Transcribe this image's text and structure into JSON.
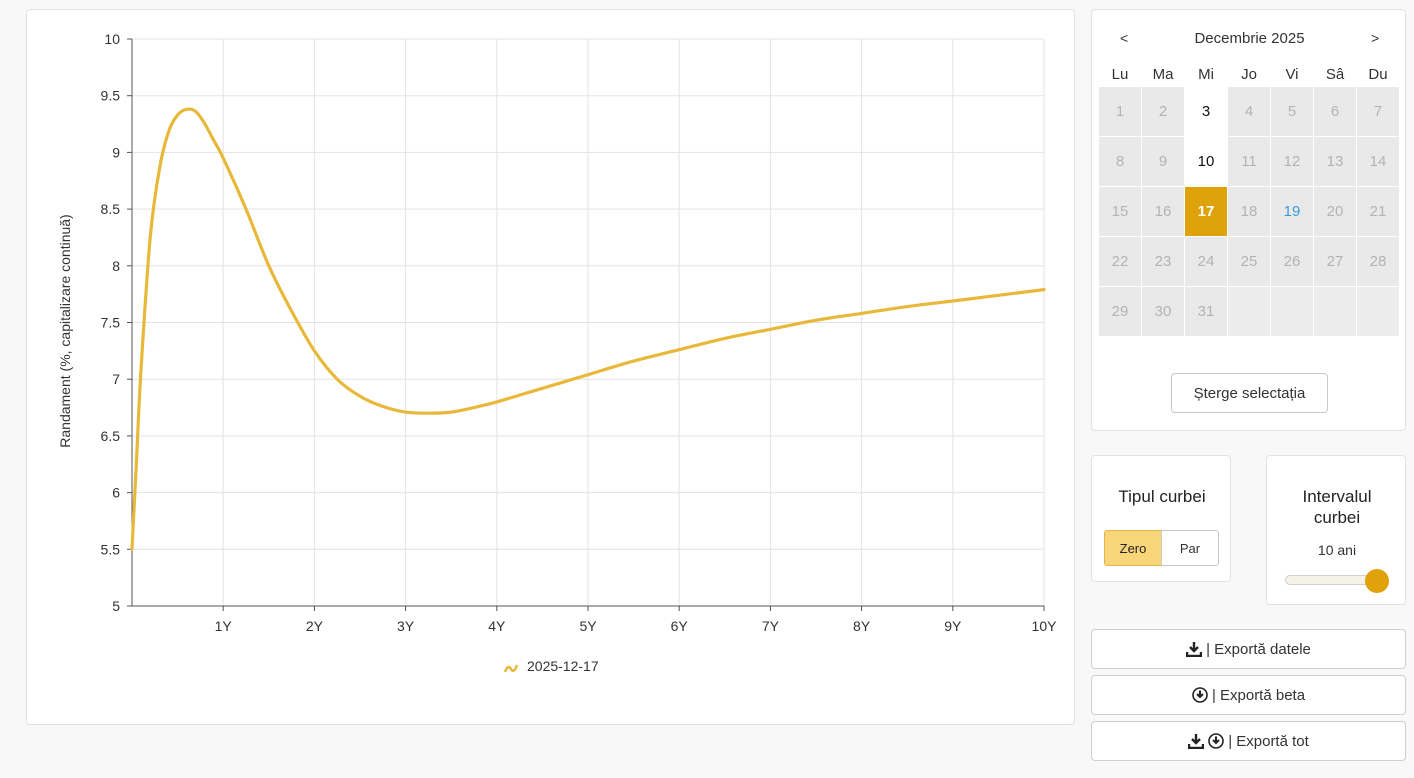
{
  "chart_data": {
    "type": "line",
    "title": "",
    "xlabel": "",
    "ylabel": "Randament (%, capitalizare continuă)",
    "xlim": [
      0,
      10
    ],
    "ylim": [
      5,
      10
    ],
    "x_ticks": [
      "1Y",
      "2Y",
      "3Y",
      "4Y",
      "5Y",
      "6Y",
      "7Y",
      "8Y",
      "9Y",
      "10Y"
    ],
    "y_ticks": [
      "5",
      "5.5",
      "6",
      "6.5",
      "7",
      "7.5",
      "8",
      "8.5",
      "9",
      "9.5",
      "10"
    ],
    "grid": true,
    "legend_position": "bottom-center",
    "series": [
      {
        "name": "2025-12-17",
        "color": "#e8b83a",
        "points": [
          [
            0,
            5.5
          ],
          [
            0.05,
            6.3
          ],
          [
            0.1,
            7.1
          ],
          [
            0.2,
            8.25
          ],
          [
            0.3,
            8.85
          ],
          [
            0.4,
            9.18
          ],
          [
            0.5,
            9.33
          ],
          [
            0.6,
            9.38
          ],
          [
            0.7,
            9.36
          ],
          [
            0.8,
            9.25
          ],
          [
            0.9,
            9.1
          ],
          [
            1.0,
            8.95
          ],
          [
            1.25,
            8.5
          ],
          [
            1.5,
            8.0
          ],
          [
            1.75,
            7.6
          ],
          [
            2.0,
            7.25
          ],
          [
            2.25,
            7.0
          ],
          [
            2.5,
            6.85
          ],
          [
            2.75,
            6.76
          ],
          [
            3.0,
            6.71
          ],
          [
            3.25,
            6.7
          ],
          [
            3.5,
            6.71
          ],
          [
            3.75,
            6.75
          ],
          [
            4.0,
            6.8
          ],
          [
            4.5,
            6.92
          ],
          [
            5.0,
            7.04
          ],
          [
            5.5,
            7.16
          ],
          [
            6.0,
            7.26
          ],
          [
            6.5,
            7.36
          ],
          [
            7.0,
            7.44
          ],
          [
            7.5,
            7.52
          ],
          [
            8.0,
            7.58
          ],
          [
            8.5,
            7.64
          ],
          [
            9.0,
            7.69
          ],
          [
            9.5,
            7.74
          ],
          [
            10.0,
            7.79
          ]
        ]
      }
    ]
  },
  "calendar": {
    "prev": "<",
    "next": ">",
    "month_label": "Decembrie 2025",
    "weekdays": [
      "Lu",
      "Ma",
      "Mi",
      "Jo",
      "Vi",
      "Sâ",
      "Du"
    ],
    "weeks": [
      [
        "1",
        "2",
        "3",
        "4",
        "5",
        "6",
        "7"
      ],
      [
        "8",
        "9",
        "10",
        "11",
        "12",
        "13",
        "14"
      ],
      [
        "15",
        "16",
        "17",
        "18",
        "19",
        "20",
        "21"
      ],
      [
        "22",
        "23",
        "24",
        "25",
        "26",
        "27",
        "28"
      ],
      [
        "29",
        "30",
        "31",
        "",
        "",
        "",
        ""
      ]
    ],
    "available_days": [
      "3",
      "10"
    ],
    "selected_day": "17",
    "today": "19",
    "clear_label": "Șterge selectația"
  },
  "curve_type": {
    "title": "Tipul curbei",
    "options": [
      "Zero",
      "Par"
    ],
    "selected": "Zero"
  },
  "curve_range": {
    "title": "Intervalul curbei",
    "value_label": "10 ani",
    "slider_fraction": 1.0
  },
  "exports": {
    "data_label": "| Exportă datele",
    "beta_label": "| Exportă beta",
    "all_label": "| Exportă tot"
  },
  "colors": {
    "accent": "#dea20a",
    "line": "#e8b83a",
    "today": "#3b9cdc",
    "zero_active": "#fad67a"
  }
}
